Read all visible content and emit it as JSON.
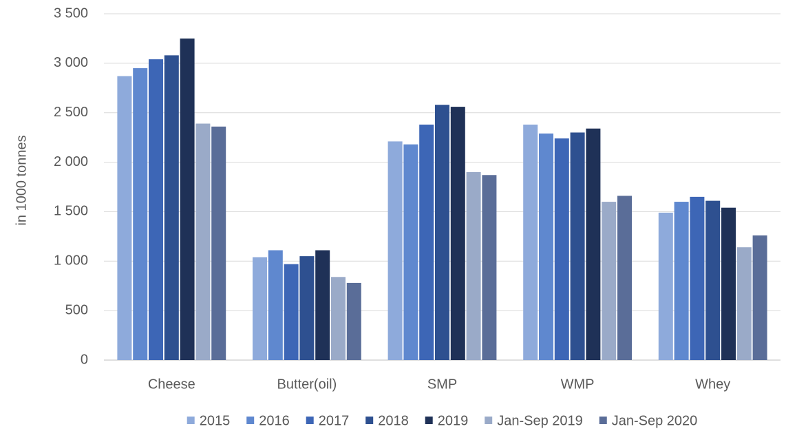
{
  "chart_data": {
    "type": "bar",
    "y_label": "in 1000 tonnes",
    "categories": [
      "Cheese",
      "Butter(oil)",
      "SMP",
      "WMP",
      "Whey"
    ],
    "series": [
      {
        "name": "2015",
        "color": "#8eaadb",
        "values": [
          2870,
          1040,
          2210,
          2380,
          1490
        ]
      },
      {
        "name": "2016",
        "color": "#5f88cf",
        "values": [
          2950,
          1110,
          2180,
          2290,
          1600
        ]
      },
      {
        "name": "2017",
        "color": "#3d66b6",
        "values": [
          3040,
          970,
          2380,
          2240,
          1650
        ]
      },
      {
        "name": "2018",
        "color": "#2e5090",
        "values": [
          3080,
          1050,
          2580,
          2300,
          1610
        ]
      },
      {
        "name": "2019",
        "color": "#1f3157",
        "values": [
          3250,
          1110,
          2560,
          2340,
          1540
        ]
      },
      {
        "name": "Jan-Sep 2019",
        "color": "#9aaac8",
        "values": [
          2390,
          840,
          1900,
          1600,
          1140
        ]
      },
      {
        "name": "Jan-Sep 2020",
        "color": "#5a6d98",
        "values": [
          2360,
          780,
          1870,
          1660,
          1260
        ]
      }
    ],
    "ylim": [
      0,
      3500
    ],
    "yticks": [
      0,
      500,
      {
        "value": 1000,
        "label": "1 000"
      },
      {
        "value": 1500,
        "label": "1 500"
      },
      {
        "value": 2000,
        "label": "2 000"
      },
      {
        "value": 2500,
        "label": "2 500"
      },
      {
        "value": 3000,
        "label": "3 000"
      },
      {
        "value": 3500,
        "label": "3 500"
      }
    ],
    "grid": true,
    "legend": "bottom"
  }
}
